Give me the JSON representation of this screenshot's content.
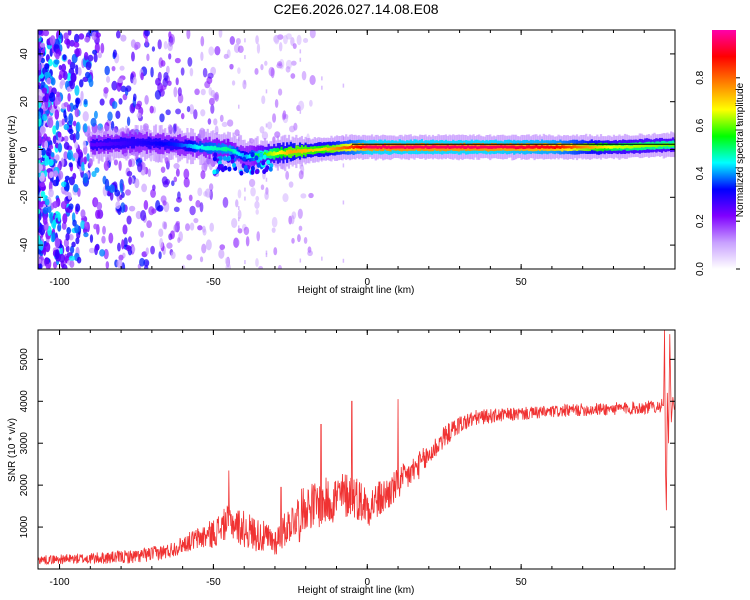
{
  "title": "C2E6.2026.027.14.08.E08",
  "colors": {
    "snr_line": "#f03232",
    "axis": "#000000",
    "track_center": "#e0004a",
    "track_mid": "#00c8ff",
    "track_outer": "#2a2ae8",
    "scatter": "#7a00ff"
  },
  "chart_data": [
    {
      "type": "heatmap",
      "name": "spectrogram",
      "xlabel": "Height of straight line (km)",
      "ylabel": "Frequency (Hz)",
      "xlim": [
        -107,
        100
      ],
      "ylim": [
        -50,
        50
      ],
      "xticks": [
        -100,
        -50,
        0,
        50
      ],
      "yticks": [
        -40,
        -20,
        0,
        20,
        40
      ],
      "colorbar": {
        "label": "Normalized spectral amplitude",
        "range": [
          0,
          1
        ],
        "ticks": [
          "0.0",
          "0.2",
          "0.4",
          "0.6",
          "0.8"
        ],
        "tick_values": [
          0.0,
          0.2,
          0.4,
          0.6,
          0.8
        ],
        "stops": [
          "#ffffff",
          "#c8a0ff",
          "#8000ff",
          "#0000ff",
          "#00ffff",
          "#00ff00",
          "#ffff00",
          "#ff8000",
          "#ff0000",
          "#ff00aa"
        ]
      },
      "signal_track": {
        "x": [
          -88,
          -75,
          -62,
          -55,
          -45,
          -40,
          -33,
          -25,
          -15,
          -5,
          0,
          20,
          40,
          60,
          80,
          100
        ],
        "freq": [
          2,
          3,
          2,
          1,
          0,
          -3,
          -2,
          -1,
          0,
          1,
          1,
          1,
          1,
          1,
          1,
          2
        ],
        "amplitude": [
          0.25,
          0.3,
          0.35,
          0.45,
          0.5,
          0.4,
          0.6,
          0.75,
          0.7,
          0.85,
          0.95,
          0.95,
          0.95,
          0.9,
          0.65,
          0.6
        ]
      }
    },
    {
      "type": "line",
      "name": "snr",
      "xlabel": "Height of straight line (km)",
      "ylabel": "SNR (10 * v/v)",
      "xlim": [
        -107,
        100
      ],
      "ylim": [
        0,
        5700
      ],
      "xticks": [
        -100,
        -50,
        0,
        50
      ],
      "yticks": [
        1000,
        2000,
        3000,
        4000,
        5000
      ],
      "trend": {
        "x": [
          -107,
          -90,
          -75,
          -65,
          -58,
          -50,
          -45,
          -40,
          -35,
          -30,
          -25,
          -20,
          -15,
          -10,
          -5,
          0,
          5,
          10,
          15,
          20,
          25,
          30,
          35,
          40,
          50,
          60,
          70,
          80,
          90,
          96
        ],
        "y": [
          220,
          250,
          300,
          420,
          650,
          850,
          1150,
          950,
          800,
          650,
          1100,
          1500,
          1550,
          1700,
          1800,
          1500,
          1700,
          2000,
          2350,
          2700,
          3150,
          3450,
          3600,
          3650,
          3700,
          3750,
          3800,
          3820,
          3850,
          3900
        ]
      },
      "noise_amplitude": {
        "x": [
          -107,
          -60,
          -50,
          -40,
          -30,
          -20,
          -10,
          0,
          10,
          20,
          30,
          40,
          60,
          96
        ],
        "y": [
          100,
          200,
          350,
          450,
          350,
          550,
          600,
          500,
          400,
          300,
          220,
          170,
          150,
          160
        ]
      },
      "spikes": [
        {
          "x": -45,
          "y": 2350
        },
        {
          "x": -28,
          "y": 1950
        },
        {
          "x": -15,
          "y": 3450
        },
        {
          "x": -5,
          "y": 4000
        },
        {
          "x": 10,
          "y": 4050
        },
        {
          "x": -22,
          "y": 650
        },
        {
          "x": 97,
          "y": 5700
        },
        {
          "x": 98,
          "y": 1400
        }
      ]
    }
  ]
}
